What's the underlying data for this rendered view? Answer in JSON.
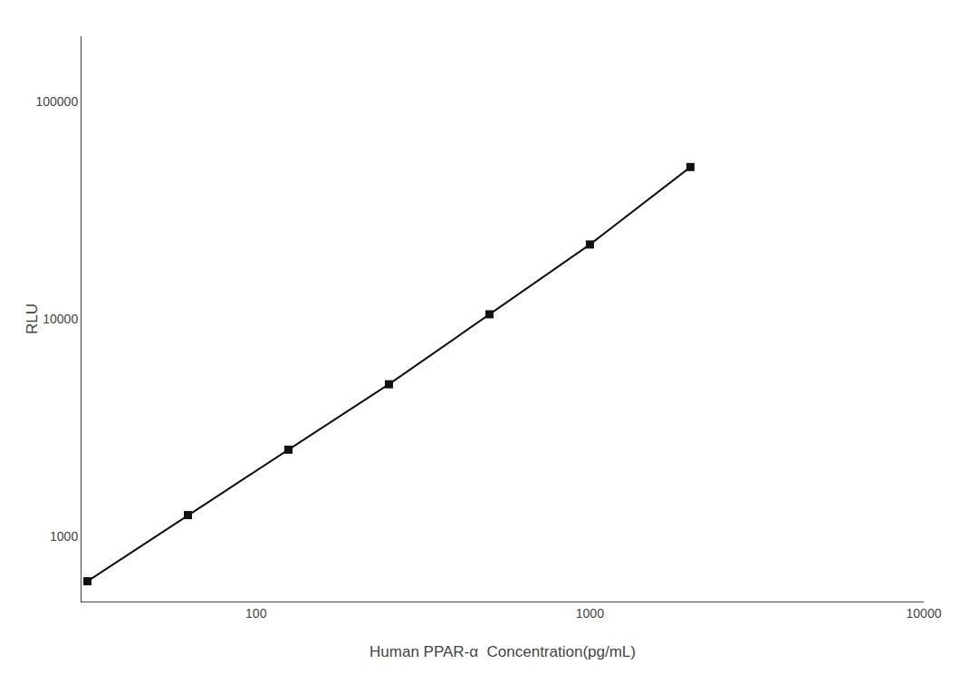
{
  "chart_data": {
    "type": "line",
    "xlabel": "Human PPAR-α  Concentration(pg/mL)",
    "ylabel": "RLU",
    "x": [
      31.25,
      62.5,
      125,
      250,
      500,
      1000,
      2000
    ],
    "series": [
      {
        "values": [
          620,
          1250,
          2500,
          5000,
          10500,
          22000,
          50000
        ],
        "color": "#111111",
        "marker": "square"
      }
    ],
    "log": true,
    "xlim": [
      30,
      10000
    ],
    "ylim": [
      500,
      200000
    ],
    "xticks": [
      100,
      1000,
      10000
    ],
    "yticks": [
      1000,
      10000,
      100000
    ],
    "grid": false
  }
}
